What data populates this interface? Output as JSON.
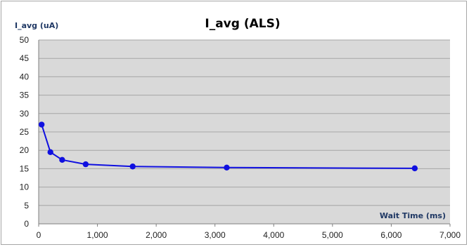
{
  "chart_data": {
    "type": "line",
    "title": "I_avg (ALS)",
    "xlabel": "Wait Time (ms)",
    "ylabel": "I_avg (uA)",
    "xlim": [
      0,
      7000
    ],
    "ylim": [
      0,
      50
    ],
    "x_ticks": [
      "0",
      "1,000",
      "2,000",
      "3,000",
      "4,000",
      "5,000",
      "6,000",
      "7,000"
    ],
    "y_ticks": [
      "0",
      "5",
      "10",
      "15",
      "20",
      "25",
      "30",
      "35",
      "40",
      "45",
      "50"
    ],
    "grid": true,
    "legend": "none",
    "series": [
      {
        "x": [
          50,
          200,
          400,
          800,
          1600,
          3200,
          6400
        ],
        "values": [
          27,
          19.5,
          17.4,
          16.2,
          15.6,
          15.3,
          15.1
        ],
        "color": "#1010e0"
      }
    ],
    "colors": {
      "plot_background": "#d9d9d9",
      "gridline": "#a6a6a6",
      "series": "#1010e0"
    }
  }
}
